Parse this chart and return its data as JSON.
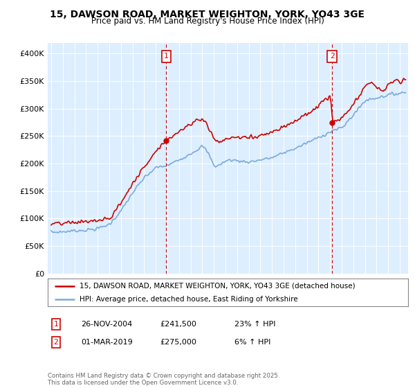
{
  "title1": "15, DAWSON ROAD, MARKET WEIGHTON, YORK, YO43 3GE",
  "title2": "Price paid vs. HM Land Registry's House Price Index (HPI)",
  "legend_line1": "15, DAWSON ROAD, MARKET WEIGHTON, YORK, YO43 3GE (detached house)",
  "legend_line2": "HPI: Average price, detached house, East Riding of Yorkshire",
  "footnote": "Contains HM Land Registry data © Crown copyright and database right 2025.\nThis data is licensed under the Open Government Licence v3.0.",
  "sale1_label": "1",
  "sale1_date": "26-NOV-2004",
  "sale1_price": "£241,500",
  "sale1_hpi": "23% ↑ HPI",
  "sale2_label": "2",
  "sale2_date": "01-MAR-2019",
  "sale2_price": "£275,000",
  "sale2_hpi": "6% ↑ HPI",
  "red_color": "#cc0000",
  "blue_color": "#7aaadd",
  "background_plot": "#ddeeff",
  "background_fig": "#ffffff",
  "ylim": [
    0,
    420000
  ],
  "yticks": [
    0,
    50000,
    100000,
    150000,
    200000,
    250000,
    300000,
    350000,
    400000
  ],
  "sale1_x": 2004.9,
  "sale1_y": 241500,
  "sale2_x": 2019.17,
  "sale2_y": 275000,
  "xmin": 1994.7,
  "xmax": 2025.7
}
